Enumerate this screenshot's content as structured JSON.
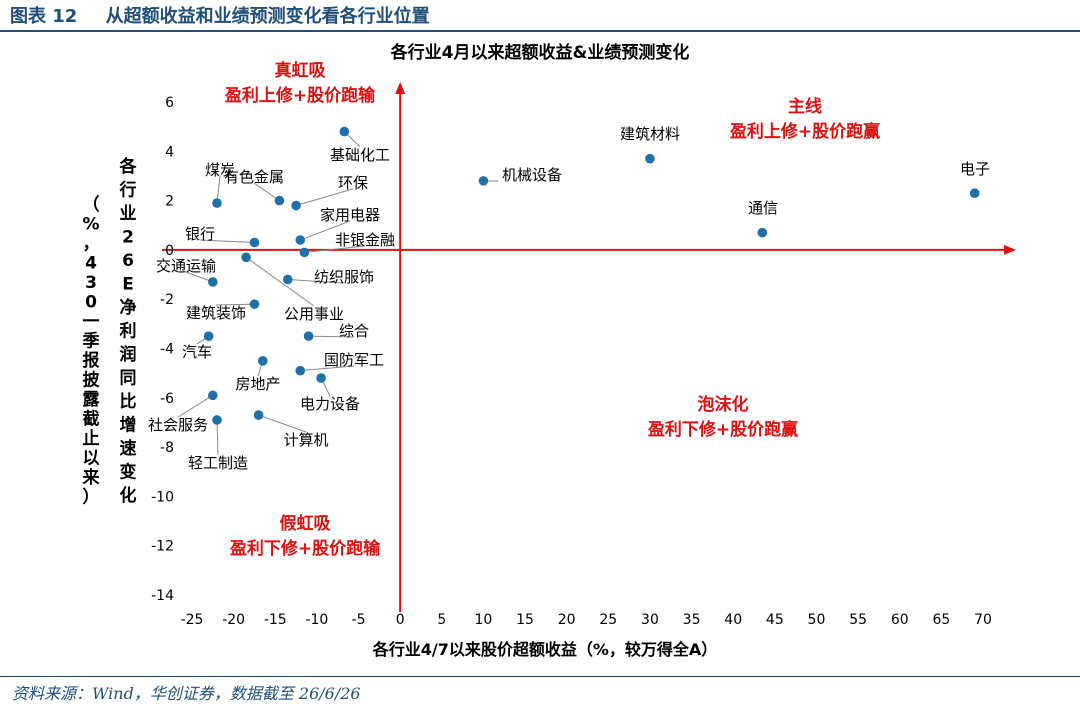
{
  "figure": {
    "label": "图表 12",
    "title": "从超额收益和业绩预测变化看各行业位置",
    "source": "资料来源：Wind，华创证券，数据截至 26/6/26"
  },
  "colors": {
    "axis": "#e01010",
    "point": "#1f6fa8",
    "quadrant_text": "#e01010",
    "header": "#1f4e79",
    "leader": "#888888"
  },
  "chart_data": {
    "type": "scatter",
    "title": "各行业4月以来超额收益&业绩预测变化",
    "xlabel": "各行业4/7以来股价超额收益（%，较万得全A）",
    "ylabel": "各行业26E净利润同比增速变化（%，430一季报披露截止以来）",
    "xlim": [
      -25,
      70
    ],
    "ylim": [
      -14,
      6
    ],
    "xticks": [
      -25,
      -20,
      -15,
      -10,
      -5,
      0,
      5,
      10,
      15,
      20,
      25,
      30,
      35,
      40,
      45,
      50,
      55,
      60,
      65,
      70
    ],
    "yticks": [
      -14,
      -12,
      -10,
      -8,
      -6,
      -4,
      -2,
      0,
      2,
      4,
      6
    ],
    "grid": false,
    "points": [
      {
        "name": "电子",
        "x": 69,
        "y": 2.3
      },
      {
        "name": "建筑材料",
        "x": 30,
        "y": 3.7
      },
      {
        "name": "通信",
        "x": 43.5,
        "y": 0.7
      },
      {
        "name": "机械设备",
        "x": 10,
        "y": 2.8
      },
      {
        "name": "基础化工",
        "x": -6.7,
        "y": 4.8
      },
      {
        "name": "煤炭",
        "x": -22,
        "y": 1.9
      },
      {
        "name": "有色金属",
        "x": -14.5,
        "y": 2.0
      },
      {
        "name": "环保",
        "x": -12.5,
        "y": 1.8
      },
      {
        "name": "家用电器",
        "x": -12,
        "y": 0.4
      },
      {
        "name": "银行",
        "x": -17.5,
        "y": 0.3
      },
      {
        "name": "非银金融",
        "x": -11.5,
        "y": -0.1
      },
      {
        "name": "交通运输",
        "x": -22.5,
        "y": -1.3
      },
      {
        "name": "纺织服饰",
        "x": -13.5,
        "y": -1.2
      },
      {
        "name": "公用事业",
        "x": -18.5,
        "y": -0.3
      },
      {
        "name": "建筑装饰",
        "x": -17.5,
        "y": -2.2
      },
      {
        "name": "综合",
        "x": -11,
        "y": -3.5
      },
      {
        "name": "汽车",
        "x": -23,
        "y": -3.5
      },
      {
        "name": "房地产",
        "x": -16.5,
        "y": -4.5
      },
      {
        "name": "国防军工",
        "x": -12,
        "y": -4.9
      },
      {
        "name": "电力设备",
        "x": -9.5,
        "y": -5.2
      },
      {
        "name": "社会服务",
        "x": -22.5,
        "y": -5.9
      },
      {
        "name": "计算机",
        "x": -17,
        "y": -6.7
      },
      {
        "name": "轻工制造",
        "x": -22,
        "y": -6.9
      }
    ],
    "annotations": [
      {
        "title": "真虹吸",
        "subtitle": "盈利上修+股价跑输"
      },
      {
        "title": "主线",
        "subtitle": "盈利上修+股价跑赢"
      },
      {
        "title": "泡沫化",
        "subtitle": "盈利下修+股价跑赢"
      },
      {
        "title": "假虹吸",
        "subtitle": "盈利下修+股价跑输"
      }
    ]
  }
}
